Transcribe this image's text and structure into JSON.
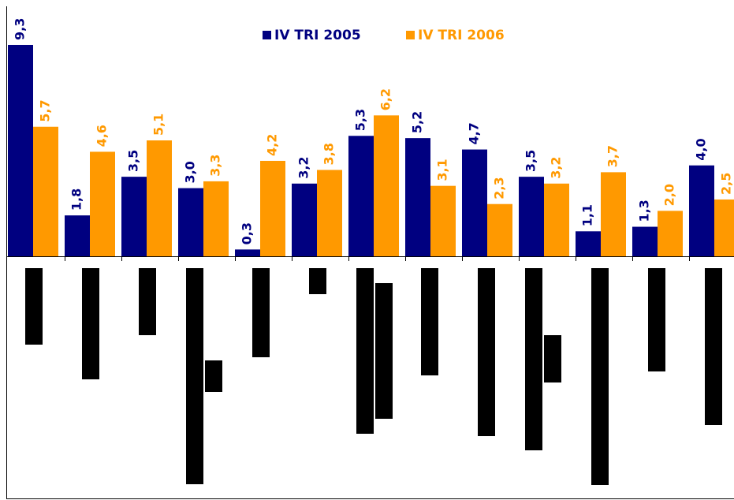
{
  "chart_data": {
    "type": "bar",
    "categories": [
      null,
      null,
      null,
      null,
      null,
      null,
      null,
      null,
      null,
      null,
      null,
      null,
      null
    ],
    "series": [
      {
        "name": "IV TRI 2005",
        "color": "#000080",
        "values": [
          9.3,
          1.8,
          3.5,
          3.0,
          0.3,
          3.2,
          5.3,
          5.2,
          4.7,
          3.5,
          1.1,
          1.3,
          4.0
        ],
        "value_labels": [
          "9,3",
          "1,8",
          "3,5",
          "3,0",
          "0,3",
          "3,2",
          "5,3",
          "5,2",
          "4,7",
          "3,5",
          "1,1",
          "1,3",
          "4,0"
        ]
      },
      {
        "name": "IV TRI 2006",
        "color": "#ff9900",
        "values": [
          5.7,
          4.6,
          5.1,
          3.3,
          4.2,
          3.8,
          6.2,
          3.1,
          2.3,
          3.2,
          3.7,
          2.0,
          2.5
        ],
        "value_labels": [
          "5,7",
          "4,6",
          "5,1",
          "3,3",
          "4,2",
          "3,8",
          "6,2",
          "3,1",
          "2,3",
          "3,2",
          "3,7",
          "2,0",
          "2,5"
        ]
      }
    ],
    "ylim": [
      0,
      11
    ],
    "legend": "top"
  }
}
